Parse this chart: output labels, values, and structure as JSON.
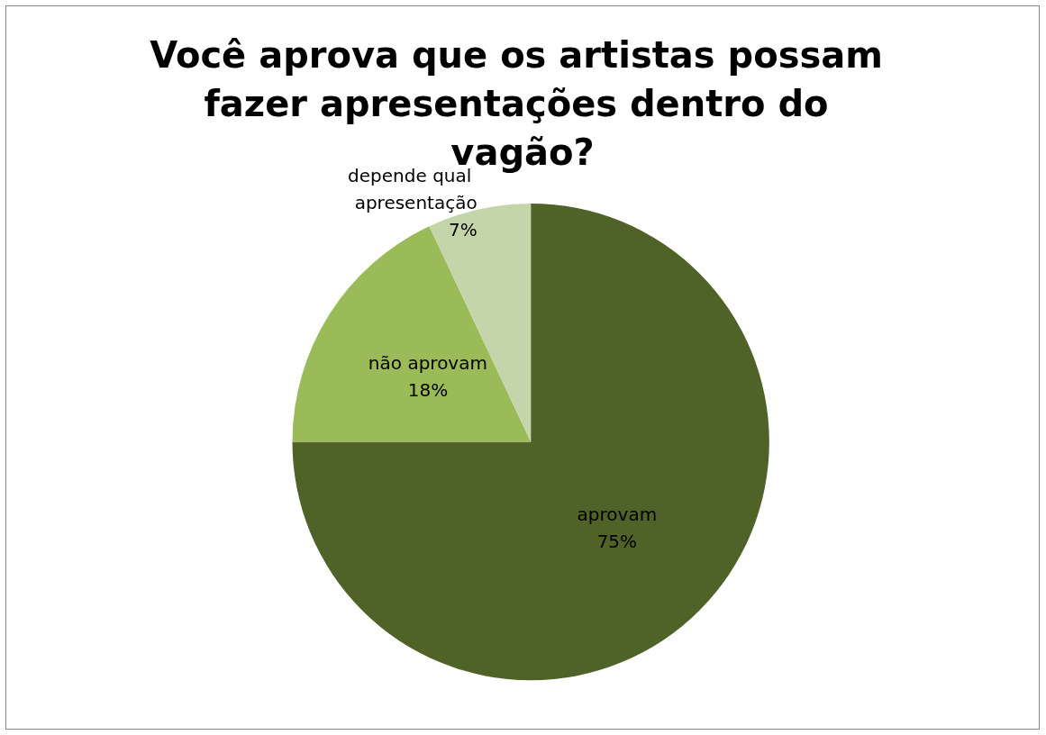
{
  "chart_data": {
    "type": "pie",
    "title": "Você aprova que os artistas possam fazer apresentações dentro do vagão?",
    "categories": [
      "aprovam",
      "não aprovam",
      "depende qual apresentação"
    ],
    "values": [
      75,
      18,
      7
    ],
    "colors": [
      "#4f6228",
      "#9bbb59",
      "#c4d6a9"
    ],
    "value_labels": [
      "75%",
      "18%",
      "7%"
    ],
    "legend": false
  }
}
